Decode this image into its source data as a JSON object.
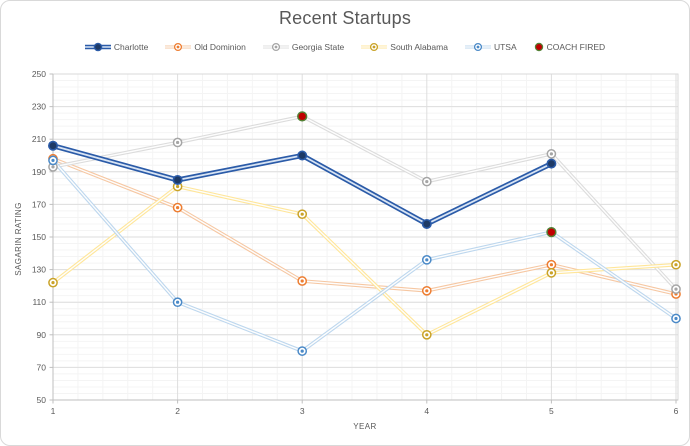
{
  "window": {
    "background": "#FFFFFF",
    "border_color": "#D9D9D9"
  },
  "colors": {
    "text": "#595959",
    "grid_minor": "#F4F4F4",
    "grid_major": "#DEDEDE",
    "plot_border": "#D9D9D9",
    "axis_line": "#BFBFBF"
  },
  "chart_data": {
    "type": "line",
    "title": "Recent Startups",
    "xlabel": "YEAR",
    "ylabel": "SAGARIN RATING",
    "xlim": [
      1,
      6
    ],
    "ylim": [
      50,
      250
    ],
    "x_ticks": [
      1,
      2,
      3,
      4,
      5,
      6
    ],
    "y_ticks": [
      50,
      70,
      90,
      110,
      130,
      150,
      170,
      190,
      210,
      230,
      250
    ],
    "y_major_unit": 20,
    "y_minor_unit": 4,
    "x_minor_unit": 0.2,
    "grid": true,
    "legend_position": "top",
    "x": [
      1,
      2,
      3,
      4,
      5,
      6
    ],
    "series": [
      {
        "name": "Charlotte",
        "values": [
          206,
          185,
          200,
          158,
          195,
          null
        ],
        "color": "#2B5BA8",
        "marker_fill": "#1E3A66",
        "tint": "#D8E4F4",
        "style": "bold-line"
      },
      {
        "name": "Old Dominion",
        "values": [
          198,
          168,
          123,
          117,
          133,
          115
        ],
        "color": "#ED7D31",
        "tint": "#F6C7A2",
        "style": "ring-line"
      },
      {
        "name": "Georgia State",
        "values": [
          193,
          208,
          224,
          184,
          201,
          118
        ],
        "color": "#A5A5A5",
        "tint": "#DCDCDC",
        "style": "ring-line"
      },
      {
        "name": "South Alabama",
        "values": [
          122,
          181,
          164,
          90,
          128,
          133
        ],
        "color": "#C9A227",
        "tint": "#FFE699",
        "style": "ring-line"
      },
      {
        "name": "UTSA",
        "values": [
          197,
          110,
          80,
          136,
          153,
          100
        ],
        "color": "#4A89C7",
        "tint": "#BDD7EE",
        "style": "ring-line"
      },
      {
        "name": "COACH FIRED",
        "points": [
          {
            "x": 3,
            "y": 224
          },
          {
            "x": 5,
            "y": 153
          }
        ],
        "color": "#C00000",
        "ring": "#538135",
        "style": "dot"
      }
    ]
  }
}
